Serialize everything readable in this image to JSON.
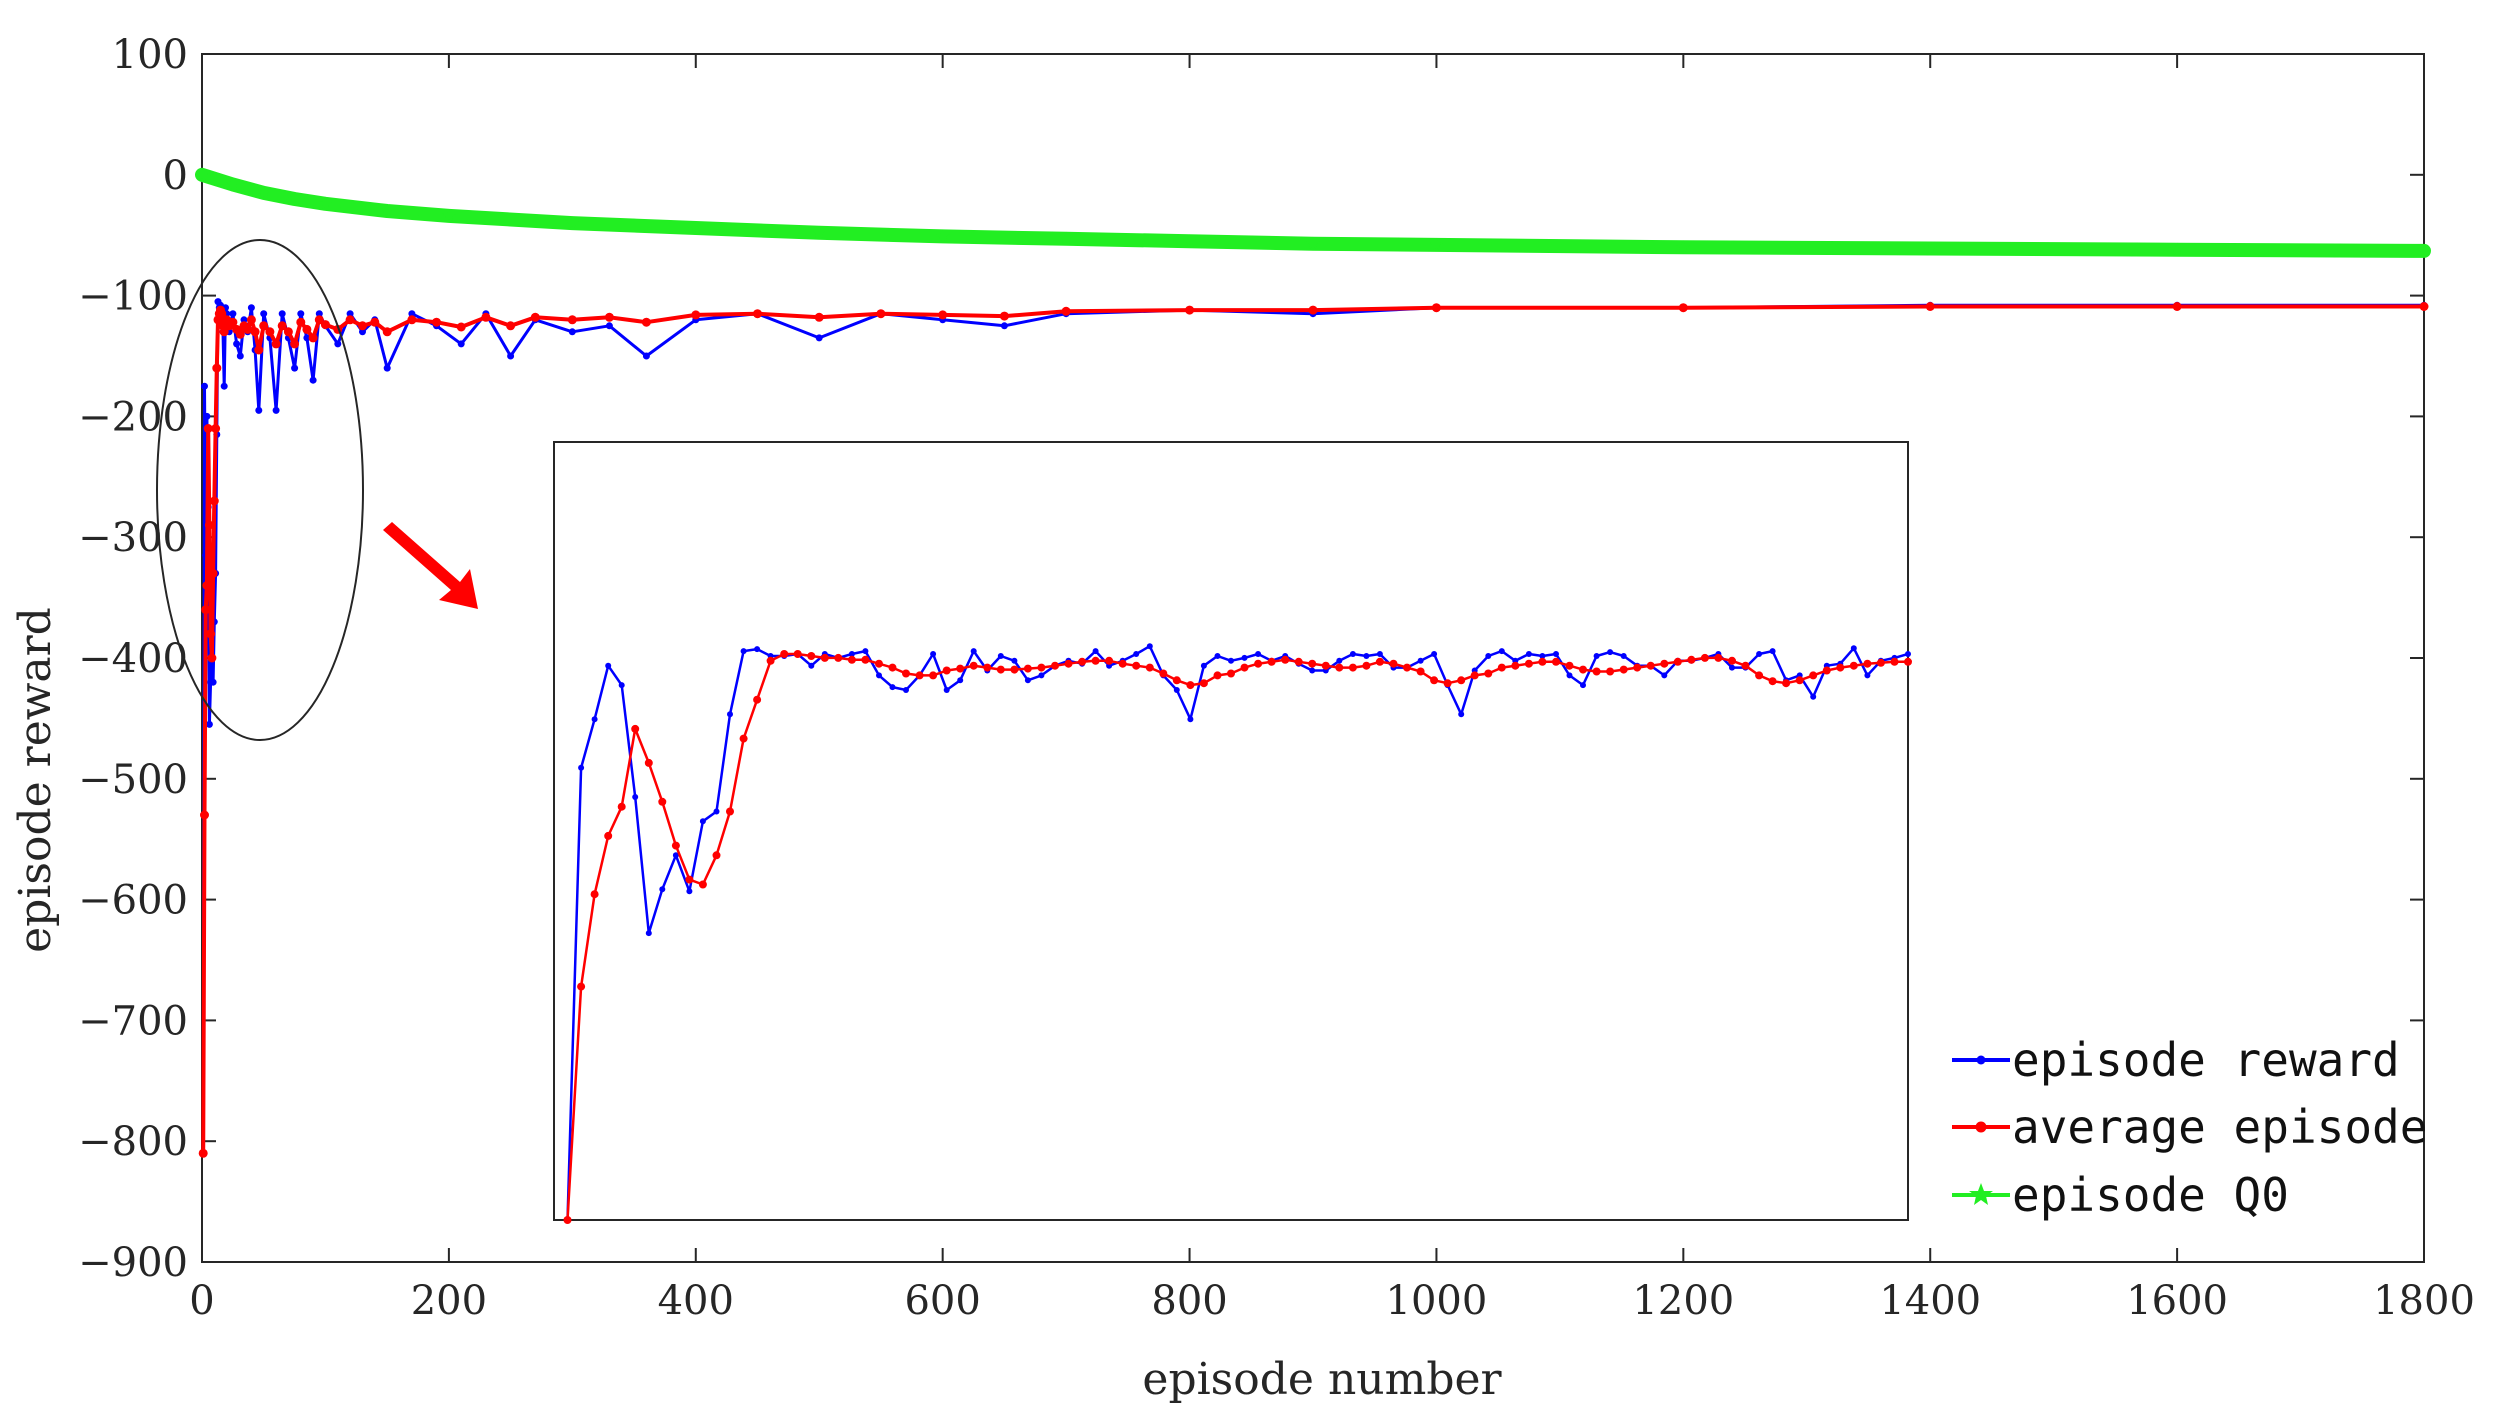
{
  "chart_data": [
    {
      "type": "line",
      "xlabel": "episode number",
      "ylabel": "episode reward",
      "xlim": [
        0,
        1800
      ],
      "ylim": [
        -900,
        100
      ],
      "xticks": [
        0,
        200,
        400,
        600,
        800,
        1000,
        1200,
        1400,
        1600,
        1800
      ],
      "yticks": [
        100,
        0,
        -100,
        -200,
        -300,
        -400,
        -500,
        -600,
        -700,
        -800,
        -900
      ],
      "xtick_labels": [
        "0",
        "200",
        "400",
        "600",
        "800",
        "1000",
        "1200",
        "1400",
        "1600",
        "1800"
      ],
      "ytick_labels": [
        "100",
        "0",
        "−100",
        "−200",
        "−300",
        "−400",
        "−500",
        "−600",
        "−700",
        "−800",
        "−900"
      ],
      "grid": false,
      "legend_position": "bottom-right",
      "series": [
        {
          "name": "episode reward",
          "color": "#0000ff",
          "marker": "dot",
          "x": [
            1,
            2,
            3,
            4,
            5,
            6,
            7,
            8,
            9,
            10,
            11,
            12,
            13,
            14,
            15,
            16,
            17,
            18,
            19,
            20,
            22,
            25,
            28,
            31,
            34,
            37,
            40,
            43,
            46,
            50,
            55,
            60,
            65,
            70,
            75,
            80,
            85,
            90,
            95,
            100,
            110,
            120,
            130,
            140,
            150,
            170,
            190,
            210,
            230,
            250,
            270,
            300,
            330,
            360,
            400,
            450,
            500,
            550,
            600,
            650,
            700,
            800,
            900,
            1000,
            1200,
            1400,
            1600,
            1800
          ],
          "y": [
            -810,
            -175,
            -315,
            -200,
            -275,
            -455,
            -420,
            -345,
            -420,
            -370,
            -330,
            -215,
            -105,
            -110,
            -108,
            -110,
            -130,
            -175,
            -110,
            -115,
            -130,
            -115,
            -140,
            -150,
            -120,
            -130,
            -110,
            -145,
            -195,
            -115,
            -135,
            -195,
            -115,
            -135,
            -160,
            -115,
            -135,
            -170,
            -115,
            -125,
            -140,
            -115,
            -130,
            -120,
            -160,
            -115,
            -125,
            -140,
            -115,
            -150,
            -120,
            -130,
            -125,
            -150,
            -120,
            -115,
            -135,
            -115,
            -120,
            -125,
            -115,
            -112,
            -115,
            -110,
            -110,
            -108,
            -108,
            -108
          ]
        },
        {
          "name": "average episode",
          "color": "#ff0000",
          "marker": "dot",
          "x": [
            1,
            2,
            3,
            4,
            5,
            6,
            7,
            8,
            9,
            10,
            11,
            12,
            13,
            14,
            15,
            16,
            17,
            18,
            19,
            20,
            22,
            25,
            28,
            31,
            34,
            37,
            40,
            43,
            46,
            50,
            55,
            60,
            65,
            70,
            75,
            80,
            85,
            90,
            95,
            100,
            110,
            120,
            130,
            140,
            150,
            170,
            190,
            210,
            230,
            250,
            270,
            300,
            330,
            360,
            400,
            450,
            500,
            550,
            600,
            650,
            700,
            800,
            900,
            1000,
            1200,
            1400,
            1600,
            1800
          ],
          "y": [
            -810,
            -530,
            -360,
            -340,
            -210,
            -290,
            -380,
            -400,
            -330,
            -270,
            -210,
            -160,
            -120,
            -115,
            -112,
            -115,
            -125,
            -130,
            -125,
            -120,
            -125,
            -122,
            -128,
            -132,
            -125,
            -128,
            -120,
            -130,
            -145,
            -125,
            -130,
            -140,
            -125,
            -130,
            -140,
            -122,
            -128,
            -135,
            -120,
            -124,
            -128,
            -120,
            -125,
            -122,
            -130,
            -120,
            -122,
            -126,
            -118,
            -125,
            -118,
            -120,
            -118,
            -122,
            -116,
            -115,
            -118,
            -115,
            -116,
            -117,
            -113,
            -112,
            -112,
            -110,
            -110,
            -109,
            -109,
            -109
          ]
        },
        {
          "name": "episode Q0",
          "color": "#22ee22",
          "marker": "star",
          "x": [
            0,
            25,
            50,
            75,
            100,
            150,
            200,
            300,
            400,
            500,
            600,
            700,
            800,
            900,
            1000,
            1200,
            1400,
            1600,
            1800
          ],
          "y": [
            0,
            -8,
            -15,
            -20,
            -24,
            -30,
            -34,
            -40,
            -44,
            -48,
            -51,
            -53,
            -55,
            -57,
            -58,
            -60,
            -61,
            -62,
            -63
          ]
        }
      ]
    },
    {
      "type": "line",
      "note_kind": "inset",
      "xlim": [
        0,
        100
      ],
      "ylim": [
        -900,
        -100
      ],
      "series": [
        {
          "name": "episode reward",
          "color": "#0000ff",
          "x": [
            1,
            2,
            3,
            4,
            5,
            6,
            7,
            8,
            9,
            10,
            11,
            12,
            13,
            14,
            15,
            16,
            17,
            18,
            19,
            20,
            21,
            22,
            23,
            24,
            25,
            26,
            27,
            28,
            29,
            30,
            31,
            32,
            33,
            34,
            35,
            36,
            37,
            38,
            39,
            40,
            41,
            42,
            43,
            44,
            45,
            46,
            47,
            48,
            49,
            50,
            51,
            52,
            53,
            54,
            55,
            56,
            57,
            58,
            59,
            60,
            61,
            62,
            63,
            64,
            65,
            66,
            67,
            68,
            69,
            70,
            71,
            72,
            73,
            74,
            75,
            76,
            77,
            78,
            79,
            80,
            81,
            82,
            83,
            84,
            85,
            86,
            87,
            88,
            89,
            90,
            91,
            92,
            93,
            94,
            95,
            96,
            97,
            98,
            99,
            100
          ],
          "y": [
            -900,
            -435,
            -385,
            -330,
            -350,
            -465,
            -605,
            -560,
            -525,
            -562,
            -490,
            -480,
            -380,
            -315,
            -313,
            -320,
            -320,
            -318,
            -330,
            -318,
            -322,
            -318,
            -315,
            -340,
            -352,
            -355,
            -340,
            -318,
            -355,
            -345,
            -315,
            -335,
            -320,
            -325,
            -345,
            -340,
            -330,
            -325,
            -328,
            -315,
            -330,
            -325,
            -318,
            -310,
            -340,
            -355,
            -385,
            -330,
            -320,
            -325,
            -322,
            -318,
            -325,
            -320,
            -328,
            -335,
            -335,
            -325,
            -318,
            -320,
            -318,
            -332,
            -332,
            -325,
            -318,
            -350,
            -380,
            -335,
            -320,
            -315,
            -325,
            -318,
            -320,
            -318,
            -340,
            -350,
            -320,
            -316,
            -320,
            -330,
            -330,
            -340,
            -325,
            -325,
            -322,
            -318,
            -332,
            -332,
            -318,
            -315,
            -345,
            -340,
            -362,
            -330,
            -328,
            -312,
            -340,
            -325,
            -322,
            -318
          ]
        },
        {
          "name": "average episode",
          "color": "#ff0000",
          "x": [
            1,
            2,
            3,
            4,
            5,
            6,
            7,
            8,
            9,
            10,
            11,
            12,
            13,
            14,
            15,
            16,
            17,
            18,
            19,
            20,
            21,
            22,
            23,
            24,
            25,
            26,
            27,
            28,
            29,
            30,
            31,
            32,
            33,
            34,
            35,
            36,
            37,
            38,
            39,
            40,
            41,
            42,
            43,
            44,
            45,
            46,
            47,
            48,
            49,
            50,
            51,
            52,
            53,
            54,
            55,
            56,
            57,
            58,
            59,
            60,
            61,
            62,
            63,
            64,
            65,
            66,
            67,
            68,
            69,
            70,
            71,
            72,
            73,
            74,
            75,
            76,
            77,
            78,
            79,
            80,
            81,
            82,
            83,
            84,
            85,
            86,
            87,
            88,
            89,
            90,
            91,
            92,
            93,
            94,
            95,
            96,
            97,
            98,
            99,
            100
          ],
          "y": [
            -900,
            -660,
            -565,
            -505,
            -475,
            -395,
            -430,
            -470,
            -515,
            -550,
            -555,
            -525,
            -480,
            -405,
            -365,
            -325,
            -318,
            -318,
            -320,
            -322,
            -322,
            -324,
            -324,
            -328,
            -332,
            -338,
            -340,
            -340,
            -335,
            -333,
            -330,
            -332,
            -334,
            -334,
            -333,
            -332,
            -330,
            -328,
            -326,
            -325,
            -325,
            -328,
            -330,
            -332,
            -338,
            -345,
            -350,
            -348,
            -340,
            -338,
            -332,
            -328,
            -326,
            -324,
            -326,
            -328,
            -330,
            -332,
            -332,
            -330,
            -326,
            -328,
            -332,
            -336,
            -345,
            -348,
            -345,
            -340,
            -338,
            -332,
            -330,
            -328,
            -326,
            -326,
            -330,
            -334,
            -336,
            -336,
            -334,
            -332,
            -330,
            -328,
            -326,
            -324,
            -322,
            -322,
            -325,
            -330,
            -340,
            -346,
            -348,
            -345,
            -340,
            -335,
            -332,
            -330,
            -328,
            -327,
            -326,
            -326
          ]
        }
      ]
    }
  ]
}
